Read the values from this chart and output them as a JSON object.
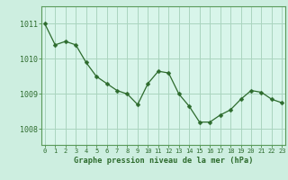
{
  "x": [
    0,
    1,
    2,
    3,
    4,
    5,
    6,
    7,
    8,
    9,
    10,
    11,
    12,
    13,
    14,
    15,
    16,
    17,
    18,
    19,
    20,
    21,
    22,
    23
  ],
  "y": [
    1011.0,
    1010.4,
    1010.5,
    1010.4,
    1009.9,
    1009.5,
    1009.3,
    1009.1,
    1009.0,
    1008.7,
    1009.3,
    1009.65,
    1009.6,
    1009.0,
    1008.65,
    1008.2,
    1008.2,
    1008.4,
    1008.55,
    1008.85,
    1009.1,
    1009.05,
    1008.85,
    1008.75
  ],
  "line_color": "#2d6b2d",
  "marker": "D",
  "marker_size": 2.5,
  "bg_color": "#cdeee0",
  "plot_bg_color": "#d8f5ea",
  "grid_color": "#aad4bf",
  "spine_color": "#5a9a5a",
  "tick_color": "#2d6b2d",
  "label_color": "#2d6b2d",
  "xlabel": "Graphe pression niveau de la mer (hPa)",
  "yticks": [
    1008,
    1009,
    1010,
    1011
  ],
  "xticks": [
    0,
    1,
    2,
    3,
    4,
    5,
    6,
    7,
    8,
    9,
    10,
    11,
    12,
    13,
    14,
    15,
    16,
    17,
    18,
    19,
    20,
    21,
    22,
    23
  ],
  "ylim": [
    1007.55,
    1011.5
  ],
  "xlim": [
    -0.3,
    23.3
  ]
}
